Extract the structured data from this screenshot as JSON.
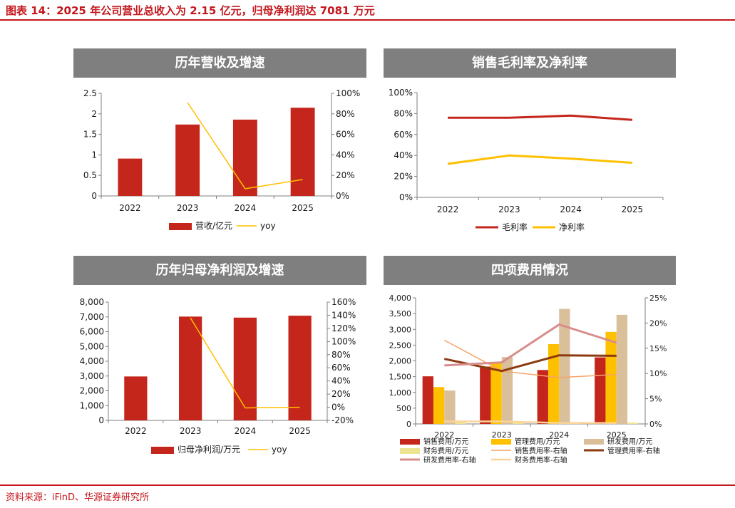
{
  "page": {
    "figure_title": "图表 14：2025 年公司营业总收入为 2.15 亿元，归母净利润达 7081 万元",
    "source": "资料来源：iFinD、华源证券研究所"
  },
  "colors": {
    "red": "#c4261c",
    "yellow": "#ffc000",
    "rule": "#c4161c",
    "banner": "#7f7f7f"
  },
  "chart_data": [
    {
      "type": "bar",
      "title": "历年营收及增速",
      "categories": [
        "2022",
        "2023",
        "2024",
        "2025"
      ],
      "series": [
        {
          "name": "营收/亿元",
          "type": "bar",
          "axis": "left",
          "color": "#c4261c",
          "values": [
            0.91,
            1.74,
            1.86,
            2.15
          ]
        },
        {
          "name": "yoy",
          "type": "line",
          "axis": "right",
          "color": "#ffc000",
          "values": [
            null,
            0.91,
            0.07,
            0.16
          ]
        }
      ],
      "ylim": [
        0,
        2.5
      ],
      "yticks": [
        "0",
        "0.5",
        "1",
        "1.5",
        "2",
        "2.5"
      ],
      "y2lim": [
        0,
        1.0
      ],
      "y2ticks": [
        "0%",
        "20%",
        "40%",
        "60%",
        "80%",
        "100%"
      ],
      "legend": "bottom"
    },
    {
      "type": "line",
      "title": "销售毛利率及净利率",
      "categories": [
        "2022",
        "2023",
        "2024",
        "2025"
      ],
      "series": [
        {
          "name": "毛利率",
          "color": "#c4261c",
          "values": [
            0.76,
            0.76,
            0.78,
            0.74
          ]
        },
        {
          "name": "净利率",
          "color": "#ffc000",
          "values": [
            0.32,
            0.4,
            0.37,
            0.33
          ]
        }
      ],
      "ylim": [
        0,
        1.0
      ],
      "yticks": [
        "0%",
        "20%",
        "40%",
        "60%",
        "80%",
        "100%"
      ],
      "legend": "bottom"
    },
    {
      "type": "bar",
      "title": "历年归母净利润及增速",
      "categories": [
        "2022",
        "2023",
        "2024",
        "2025"
      ],
      "series": [
        {
          "name": "归母净利润/万元",
          "type": "bar",
          "axis": "left",
          "color": "#c4261c",
          "values": [
            2970,
            7020,
            6950,
            7081
          ]
        },
        {
          "name": "yoy",
          "type": "line",
          "axis": "right",
          "color": "#ffc000",
          "values": [
            null,
            1.36,
            -0.01,
            0.0
          ]
        }
      ],
      "ylim": [
        0,
        8000
      ],
      "yticks": [
        "0",
        "1,000",
        "2,000",
        "3,000",
        "4,000",
        "5,000",
        "6,000",
        "7,000",
        "8,000"
      ],
      "y2lim": [
        -0.2,
        1.6
      ],
      "y2ticks": [
        "-20%",
        "0%",
        "20%",
        "40%",
        "60%",
        "80%",
        "100%",
        "120%",
        "140%",
        "160%"
      ],
      "legend": "bottom"
    },
    {
      "type": "bar",
      "title": "四项费用情况",
      "categories": [
        "2022",
        "2023",
        "2024",
        "2025"
      ],
      "series": [
        {
          "name": "销售费用/万元",
          "type": "bar",
          "axis": "left",
          "color": "#c4261c",
          "values": [
            1510,
            1820,
            1710,
            2110
          ]
        },
        {
          "name": "管理费用/万元",
          "type": "bar",
          "axis": "left",
          "color": "#ffc000",
          "values": [
            1170,
            1960,
            2530,
            2920
          ]
        },
        {
          "name": "研发费用/万元",
          "type": "bar",
          "axis": "left",
          "color": "#d9bf9a",
          "values": [
            1060,
            2120,
            3650,
            3460
          ]
        },
        {
          "name": "财务费用/万元",
          "type": "bar",
          "axis": "left",
          "color": "#ede491",
          "values": [
            60,
            80,
            40,
            40
          ]
        },
        {
          "name": "销售费用率-右轴",
          "type": "line",
          "axis": "right",
          "color": "#f4a46a",
          "width": 1.5,
          "values": [
            0.166,
            0.105,
            0.092,
            0.098
          ]
        },
        {
          "name": "管理费用率-右轴",
          "type": "line",
          "axis": "right",
          "color": "#8b3a10",
          "width": 3,
          "values": [
            0.129,
            0.105,
            0.136,
            0.135
          ]
        },
        {
          "name": "研发费用率-右轴",
          "type": "line",
          "axis": "right",
          "color": "#d98c8c",
          "width": 3,
          "values": [
            0.116,
            0.122,
            0.197,
            0.161
          ]
        },
        {
          "name": "财务费用率-右轴",
          "type": "line",
          "axis": "right",
          "color": "#fbd49a",
          "width": 2.5,
          "values": [
            0.005,
            0.005,
            0.002,
            0.002
          ]
        }
      ],
      "ylim": [
        0,
        4000
      ],
      "yticks": [
        "0",
        "500",
        "1,000",
        "1,500",
        "2,000",
        "2,500",
        "3,000",
        "3,500",
        "4,000"
      ],
      "y2lim": [
        0,
        0.25
      ],
      "y2ticks": [
        "0%",
        "5%",
        "10%",
        "15%",
        "20%",
        "25%"
      ],
      "legend": "bottom"
    }
  ]
}
